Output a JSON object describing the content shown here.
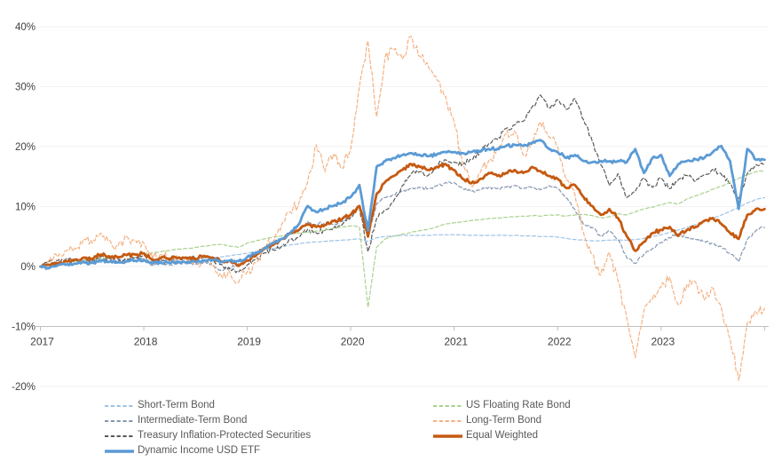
{
  "chart_data": {
    "type": "line",
    "title": "",
    "background": "#FFFFFF",
    "grid_color": "#F2F2F2",
    "axis_line_color": "#BFBFBF",
    "axis_text_color": "#404040",
    "legend_text_color": "#595959",
    "legend_position": "bottom",
    "grid": true,
    "x_axis": {
      "labels": [
        "2017",
        "2018",
        "2019",
        "2020",
        "2021",
        "2022",
        "2023"
      ],
      "values": [
        2017,
        2018,
        2019,
        2020,
        2021,
        2022,
        2023
      ],
      "range": [
        2017,
        2024
      ]
    },
    "y_axis": {
      "labels": [
        "40%",
        "30%",
        "20%",
        "10%",
        "0%",
        "-10%",
        "-20%"
      ],
      "values": [
        40,
        30,
        20,
        10,
        0,
        -10,
        -20
      ],
      "range": [
        -20,
        40
      ],
      "unit": "%"
    },
    "x_start_year": 2017.0,
    "x_step": "monthly",
    "series": [
      {
        "name": "Short-Term Bond",
        "slug": "short-term-bond",
        "color": "#9DC3E6",
        "dashed": true,
        "width": 1.2,
        "jitter": 0.05,
        "values": [
          0.0,
          0.2,
          0.3,
          0.4,
          0.5,
          0.6,
          0.7,
          0.7,
          0.8,
          0.8,
          0.8,
          0.9,
          0.9,
          0.9,
          1.0,
          1.0,
          1.1,
          1.2,
          1.3,
          1.4,
          1.5,
          1.6,
          1.8,
          2.0,
          2.2,
          2.5,
          2.8,
          3.0,
          3.3,
          3.6,
          3.8,
          4.0,
          4.1,
          4.2,
          4.3,
          4.4,
          4.5,
          4.6,
          4.2,
          4.8,
          5.0,
          5.1,
          5.2,
          5.2,
          5.2,
          5.2,
          5.3,
          5.3,
          5.3,
          5.3,
          5.2,
          5.2,
          5.2,
          5.2,
          5.2,
          5.2,
          5.1,
          5.1,
          5.0,
          5.0,
          4.9,
          4.7,
          4.5,
          4.4,
          4.3,
          4.3,
          4.4,
          4.4,
          4.4,
          4.5,
          4.7,
          5.0,
          5.3,
          5.7,
          6.1,
          6.5,
          7.0,
          7.5,
          8.0,
          8.6,
          9.2,
          9.9,
          10.6,
          11.2,
          11.5
        ]
      },
      {
        "name": "Intermediate-Term Bond",
        "slug": "intermediate-term-bond",
        "color": "#8496B0",
        "dashed": true,
        "width": 1.2,
        "jitter": 0.3,
        "values": [
          0.0,
          0.3,
          0.5,
          0.8,
          0.9,
          1.0,
          1.1,
          1.4,
          1.3,
          1.2,
          1.1,
          1.5,
          1.3,
          0.2,
          0.5,
          0.3,
          0.6,
          0.5,
          0.4,
          0.8,
          0.3,
          -0.7,
          -0.3,
          0.5,
          1.5,
          2.0,
          3.0,
          3.5,
          4.5,
          5.5,
          6.0,
          7.5,
          7.0,
          7.3,
          7.0,
          7.5,
          8.5,
          10.0,
          5.0,
          10.5,
          11.5,
          12.0,
          12.5,
          13.0,
          13.2,
          13.0,
          13.5,
          14.0,
          14.0,
          13.0,
          12.5,
          12.8,
          13.2,
          13.0,
          13.3,
          13.5,
          13.0,
          13.2,
          12.8,
          13.5,
          13.0,
          11.5,
          9.5,
          7.0,
          6.5,
          5.0,
          6.0,
          4.5,
          1.5,
          0.5,
          2.0,
          3.0,
          4.0,
          4.8,
          5.5,
          4.8,
          4.5,
          4.2,
          3.8,
          3.3,
          2.2,
          0.8,
          4.5,
          6.0,
          6.5
        ]
      },
      {
        "name": "Treasury Inflation-Protected Securities",
        "slug": "tips",
        "color": "#595959",
        "dashed": true,
        "width": 1.2,
        "jitter": 0.5,
        "values": [
          0.0,
          0.8,
          1.0,
          1.3,
          1.1,
          0.6,
          0.9,
          1.6,
          1.4,
          1.0,
          1.3,
          1.6,
          1.9,
          0.9,
          1.2,
          1.0,
          1.3,
          1.6,
          1.4,
          1.6,
          1.1,
          0.4,
          -0.4,
          -0.9,
          0.3,
          1.2,
          2.3,
          2.8,
          3.4,
          4.5,
          5.0,
          6.2,
          5.6,
          6.0,
          6.4,
          7.0,
          8.2,
          9.8,
          2.5,
          8.0,
          9.5,
          11.0,
          13.5,
          15.5,
          15.8,
          15.2,
          16.8,
          17.8,
          17.4,
          17.0,
          17.8,
          19.0,
          20.5,
          21.2,
          23.0,
          23.6,
          24.2,
          26.5,
          28.6,
          26.4,
          27.8,
          26.2,
          28.0,
          24.5,
          21.0,
          17.0,
          13.5,
          15.5,
          11.5,
          12.5,
          14.8,
          13.2,
          14.8,
          13.0,
          14.5,
          15.2,
          14.2,
          15.3,
          16.2,
          15.4,
          13.8,
          11.2,
          15.5,
          17.0,
          17.3
        ]
      },
      {
        "name": "US Floating Rate Bond",
        "slug": "us-floating-rate-bond",
        "color": "#A9D18E",
        "dashed": true,
        "width": 1.2,
        "jitter": 0.07,
        "values": [
          0.0,
          0.3,
          0.5,
          0.7,
          0.9,
          1.0,
          1.2,
          1.3,
          1.5,
          1.7,
          1.8,
          2.0,
          2.2,
          2.3,
          2.5,
          2.7,
          2.9,
          3.0,
          3.2,
          3.4,
          3.6,
          3.7,
          3.4,
          3.2,
          3.9,
          4.3,
          4.6,
          4.9,
          5.1,
          5.4,
          5.6,
          5.7,
          5.9,
          6.1,
          6.4,
          6.6,
          6.8,
          6.6,
          -6.8,
          3.2,
          4.6,
          5.1,
          5.4,
          5.7,
          6.0,
          6.2,
          6.6,
          7.1,
          7.3,
          7.5,
          7.7,
          7.8,
          8.0,
          8.1,
          8.2,
          8.3,
          8.4,
          8.5,
          8.4,
          8.6,
          8.6,
          8.4,
          8.6,
          8.7,
          8.5,
          8.1,
          8.3,
          8.8,
          8.6,
          9.1,
          9.6,
          9.9,
          10.3,
          10.7,
          10.4,
          11.3,
          11.8,
          12.3,
          12.9,
          13.4,
          14.1,
          14.7,
          15.3,
          15.8,
          16.0
        ]
      },
      {
        "name": "Long-Term Bond",
        "slug": "long-term-bond",
        "color": "#F4B183",
        "dashed": true,
        "width": 1.2,
        "jitter": 1.1,
        "values": [
          0.0,
          1.0,
          1.6,
          2.6,
          3.1,
          4.6,
          3.9,
          5.6,
          4.4,
          3.4,
          5.0,
          4.4,
          3.9,
          1.4,
          2.0,
          1.0,
          1.6,
          1.0,
          0.5,
          1.6,
          0.0,
          -1.6,
          -1.0,
          -2.6,
          -0.9,
          0.6,
          3.1,
          4.1,
          7.1,
          9.1,
          10.6,
          14.1,
          20.3,
          15.8,
          18.8,
          16.4,
          19.6,
          30.0,
          37.6,
          25.0,
          35.0,
          36.1,
          34.6,
          38.4,
          35.1,
          33.4,
          31.1,
          28.4,
          24.0,
          17.0,
          13.4,
          15.6,
          17.6,
          19.6,
          22.1,
          22.6,
          18.6,
          20.4,
          24.1,
          21.6,
          20.0,
          14.4,
          12.0,
          5.6,
          2.0,
          -1.4,
          2.4,
          -2.4,
          -8.4,
          -15.2,
          -7.4,
          -5.4,
          -3.4,
          -1.8,
          -6.4,
          -3.0,
          -2.6,
          -5.6,
          -3.6,
          -7.0,
          -12.0,
          -19.0,
          -9.4,
          -7.6,
          -7.0
        ]
      },
      {
        "name": "Equal Weighted",
        "slug": "equal-weighted",
        "color": "#C55A11",
        "dashed": false,
        "width": 2.8,
        "jitter": 0.35,
        "values": [
          0.0,
          0.3,
          0.5,
          0.9,
          1.1,
          1.5,
          1.3,
          2.0,
          1.7,
          1.5,
          1.9,
          2.0,
          2.2,
          1.2,
          1.5,
          1.3,
          1.5,
          1.4,
          1.2,
          1.8,
          1.5,
          0.8,
          1.0,
          0.1,
          1.0,
          1.8,
          3.0,
          3.6,
          4.6,
          5.6,
          6.1,
          7.1,
          6.6,
          6.9,
          7.6,
          7.9,
          8.6,
          10.1,
          5.0,
          12.1,
          14.1,
          15.1,
          16.1,
          17.1,
          16.6,
          16.1,
          16.6,
          17.1,
          16.1,
          14.6,
          13.9,
          14.6,
          15.6,
          15.1,
          15.6,
          16.1,
          15.6,
          16.6,
          15.9,
          15.1,
          14.6,
          13.1,
          13.6,
          11.6,
          10.1,
          8.6,
          9.6,
          8.1,
          5.1,
          2.6,
          4.1,
          5.6,
          6.1,
          6.6,
          5.1,
          6.1,
          6.6,
          7.6,
          8.1,
          7.1,
          5.6,
          4.6,
          8.6,
          9.6,
          9.6
        ]
      },
      {
        "name": "Dynamic Income USD ETF",
        "slug": "dynamic-income-usd-etf",
        "color": "#5B9BD5",
        "dashed": false,
        "width": 2.8,
        "jitter": 0.3,
        "values": [
          0.0,
          -0.3,
          0.2,
          0.3,
          0.5,
          0.8,
          0.6,
          1.0,
          0.8,
          0.7,
          0.9,
          1.0,
          1.0,
          0.5,
          0.7,
          0.6,
          0.8,
          0.7,
          0.8,
          1.0,
          1.1,
          0.8,
          1.0,
          0.9,
          1.6,
          2.3,
          3.1,
          3.9,
          4.6,
          5.6,
          7.1,
          10.1,
          9.1,
          9.6,
          10.1,
          10.6,
          11.6,
          13.6,
          6.0,
          16.6,
          17.6,
          18.1,
          18.6,
          18.9,
          18.6,
          18.4,
          18.7,
          19.1,
          19.1,
          18.9,
          19.1,
          19.3,
          19.6,
          19.6,
          20.1,
          20.3,
          20.1,
          20.6,
          21.1,
          19.6,
          19.1,
          18.1,
          18.6,
          17.6,
          17.4,
          17.6,
          17.5,
          17.6,
          17.4,
          19.6,
          15.6,
          18.1,
          18.6,
          15.1,
          17.1,
          17.6,
          17.9,
          18.1,
          19.1,
          20.1,
          17.6,
          9.6,
          19.6,
          17.8,
          17.8
        ]
      }
    ]
  },
  "legend": {
    "columns": [
      [
        0,
        1,
        2,
        6
      ],
      [
        3,
        4,
        5
      ]
    ]
  }
}
